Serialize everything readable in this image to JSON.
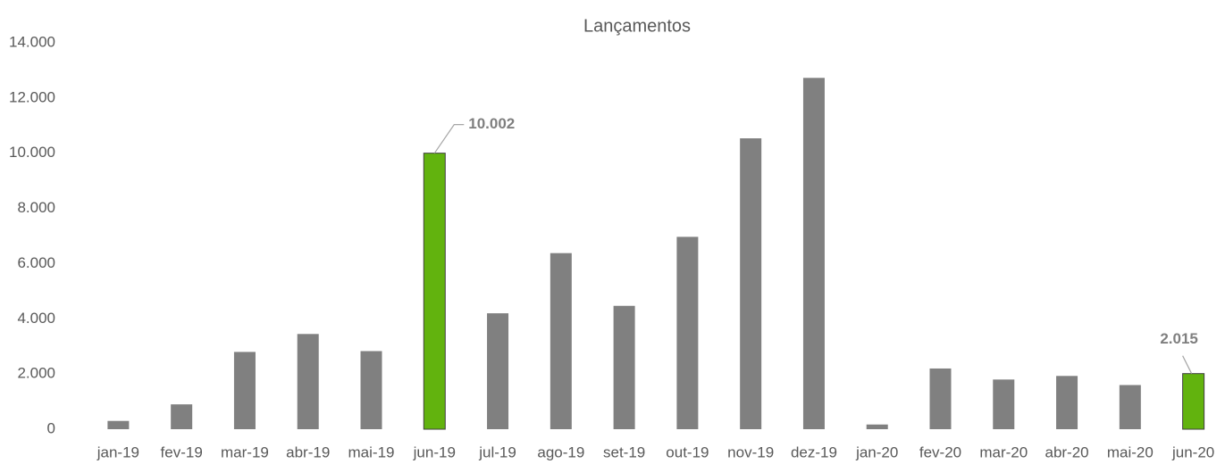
{
  "chart_data": {
    "type": "bar",
    "title": "Lançamentos",
    "categories": [
      "jan-19",
      "fev-19",
      "mar-19",
      "abr-19",
      "mai-19",
      "jun-19",
      "jul-19",
      "ago-19",
      "set-19",
      "out-19",
      "nov-19",
      "dez-19",
      "jan-20",
      "fev-20",
      "mar-20",
      "abr-20",
      "mai-20",
      "jun-20"
    ],
    "values": [
      300,
      900,
      2800,
      3450,
      2830,
      10002,
      4200,
      6380,
      4470,
      6970,
      10540,
      12730,
      170,
      2200,
      1800,
      1930,
      1600,
      2015
    ],
    "value_labels": [
      null,
      null,
      null,
      null,
      null,
      "10.002",
      null,
      null,
      null,
      null,
      null,
      null,
      null,
      null,
      null,
      null,
      null,
      "2.015"
    ],
    "colors": [
      "#808080",
      "#808080",
      "#808080",
      "#808080",
      "#808080",
      "#62b30e",
      "#808080",
      "#808080",
      "#808080",
      "#808080",
      "#808080",
      "#808080",
      "#808080",
      "#808080",
      "#808080",
      "#808080",
      "#808080",
      "#62b30e"
    ],
    "ylim": [
      0,
      14000
    ],
    "yticks": [
      0,
      {
        "value": 2000,
        "label": "2.000"
      },
      {
        "value": 4000,
        "label": "4.000"
      },
      {
        "value": 6000,
        "label": "6.000"
      },
      {
        "value": 8000,
        "label": "8.000"
      },
      {
        "value": 10000,
        "label": "10.000"
      },
      {
        "value": 12000,
        "label": "12.000"
      },
      {
        "value": 14000,
        "label": "14.000"
      }
    ],
    "grid": false
  }
}
